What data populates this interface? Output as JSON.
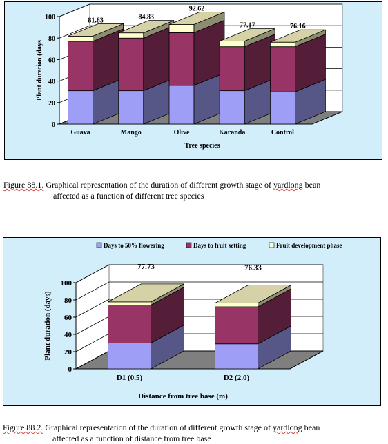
{
  "colors": {
    "flowering": "#9e9ef6",
    "fruit_setting": "#993466",
    "fruit_development": "#ffffcc",
    "floor": "#7f7f7f",
    "panel_bg": "#d2eefb",
    "plot_bg": "#ffffff"
  },
  "chart_data": [
    {
      "type": "bar",
      "stacked": true,
      "categories": [
        "Guava",
        "Mango",
        "Olive",
        "Karanda",
        "Control"
      ],
      "series": [
        {
          "name": "",
          "values": [
            31,
            31,
            36,
            31,
            30
          ]
        },
        {
          "name": "",
          "values": [
            46,
            49,
            49,
            41,
            42
          ]
        },
        {
          "name": "",
          "values": [
            4.83,
            4.83,
            7.62,
            5.17,
            4.16
          ]
        }
      ],
      "totals": [
        "81.83",
        "84.83",
        "92.62",
        "77.17",
        "76.16"
      ],
      "ylabel": "Plant duration (days",
      "xlabel": "Tree species",
      "ylim": [
        0,
        100
      ],
      "yticks": [
        "0",
        "20",
        "40",
        "60",
        "80",
        "100"
      ],
      "grid": true,
      "legend": "none"
    },
    {
      "type": "bar",
      "stacked": true,
      "categories": [
        "D1 (0.5)",
        "D2 (2.0)"
      ],
      "series": [
        {
          "name": "Days to 50% flowering",
          "values": [
            30,
            29
          ]
        },
        {
          "name": "Days to fruit setting",
          "values": [
            44,
            43
          ]
        },
        {
          "name": "Fruit development phase",
          "values": [
            3.73,
            4.33
          ]
        }
      ],
      "totals": [
        "77.73",
        "76.33"
      ],
      "ylabel": "Plant duration (days)",
      "xlabel": "Distance from tree base (m)",
      "ylim": [
        0,
        100
      ],
      "yticks": [
        "0",
        "20",
        "40",
        "60",
        "80",
        "100"
      ],
      "grid": true,
      "legend": "top"
    }
  ],
  "captions": {
    "fig1_label": "Figure 88.1.",
    "fig1_line1": " Graphical representation of the duration of different growth stage of ",
    "fig1_word": "yardlong",
    "fig1_line1_end": " bean",
    "fig1_line2": "affected as a function of different tree species",
    "fig2_label": "Figure 88.2.",
    "fig2_line1": " Graphical representation of the duration of different growth stage of ",
    "fig2_word": "yardlong",
    "fig2_line1_end": " bean",
    "fig2_line2": "affected as a function of distance from tree base"
  }
}
